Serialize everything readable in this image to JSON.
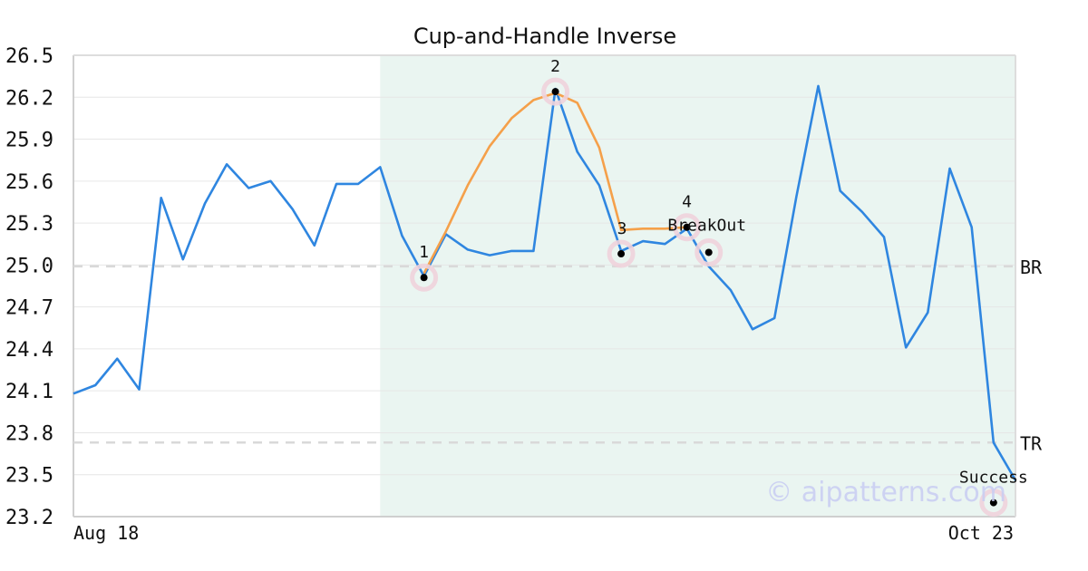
{
  "chart_data": {
    "type": "line",
    "title": "Cup-and-Handle Inverse",
    "xlabel": "",
    "ylabel": "",
    "x_start_label": "Aug 18",
    "x_end_label": "Oct 23",
    "ylim": [
      23.2,
      26.5
    ],
    "yticks": [
      23.2,
      23.5,
      23.8,
      24.1,
      24.4,
      24.7,
      25.0,
      25.3,
      25.6,
      25.9,
      26.2,
      26.5
    ],
    "grid": true,
    "series": [
      {
        "color": "#2f86e0",
        "values": [
          24.08,
          24.14,
          24.33,
          24.11,
          25.48,
          25.04,
          25.44,
          25.72,
          25.55,
          25.6,
          25.4,
          25.14,
          25.58,
          25.58,
          25.7,
          25.21,
          24.92,
          25.22,
          25.11,
          25.07,
          25.1,
          25.1,
          26.26,
          25.81,
          25.57,
          25.1,
          25.17,
          25.15,
          25.26,
          24.99,
          24.82,
          24.54,
          24.62,
          25.49,
          26.28,
          25.53,
          25.38,
          25.2,
          24.41,
          24.66,
          25.69,
          25.27,
          23.73,
          23.46
        ]
      },
      {
        "color": "#f5a04a",
        "start_index": 16,
        "values": [
          24.94,
          25.24,
          25.57,
          25.85,
          26.05,
          26.18,
          26.23,
          26.16,
          25.84,
          25.25,
          25.26,
          25.26,
          25.27
        ]
      }
    ],
    "highlight_region": {
      "from_index": 14,
      "to_index": 43,
      "color": "#eaf5f1"
    },
    "points": [
      {
        "label": "1",
        "index": 16,
        "value": 24.91
      },
      {
        "label": "2",
        "index": 22,
        "value": 26.24
      },
      {
        "label": "3",
        "index": 25,
        "value": 25.08
      },
      {
        "label": "4",
        "index": 28,
        "value": 25.27
      },
      {
        "label": "BreakOut",
        "index": 29,
        "value": 25.09
      },
      {
        "label": "Success",
        "index": 42,
        "value": 23.3
      }
    ],
    "reference_lines": [
      {
        "label": "BR",
        "value": 24.99
      },
      {
        "label": "TR",
        "value": 23.73
      }
    ],
    "watermark": "© aipatterns.com"
  }
}
